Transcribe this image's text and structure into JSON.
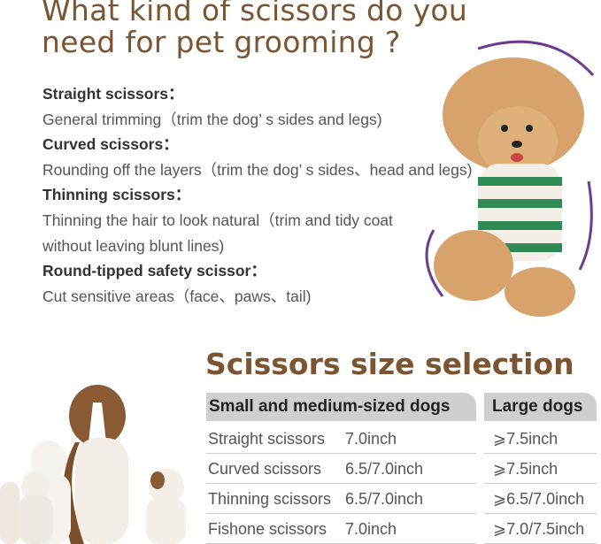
{
  "title_lines": [
    "What kind of scissors do you",
    "need for pet grooming ?"
  ],
  "guide": [
    {
      "name": "Straight scissors：",
      "desc": [
        "General trimming（trim the dog’ s sides and legs)"
      ]
    },
    {
      "name": "Curved scissors：",
      "desc": [
        "Rounding off the layers（trim the dog’ s sides、head and legs)"
      ]
    },
    {
      "name": "Thinning scissors：",
      "desc": [
        "Thinning the hair to look natural（trim and tidy coat",
        "without leaving blunt lines)"
      ]
    },
    {
      "name": "Round-tipped safety scissor：",
      "desc": [
        "Cut sensitive areas（face、paws、tail)"
      ]
    }
  ],
  "size_section": {
    "title": "Scissors size selection",
    "headers": [
      "Small and medium-sized dogs",
      "Large dogs"
    ],
    "rows": [
      {
        "type": "Straight scissors",
        "small": "7.0inch",
        "large": "⩾7.5inch"
      },
      {
        "type": "Curved scissors",
        "small": "6.5/7.0inch",
        "large": "⩾7.5inch"
      },
      {
        "type": "Thinning scissors",
        "small": "6.5/7.0inch",
        "large": "⩾6.5/7.0inch"
      },
      {
        "type": "Fishone scissors",
        "small": "7.0inch",
        "large": "⩾7.0/7.5inch"
      }
    ]
  },
  "colors": {
    "title": "#7b5431",
    "header_bg": "#cfcfcf",
    "accent_arc": "#6a3d8f"
  }
}
